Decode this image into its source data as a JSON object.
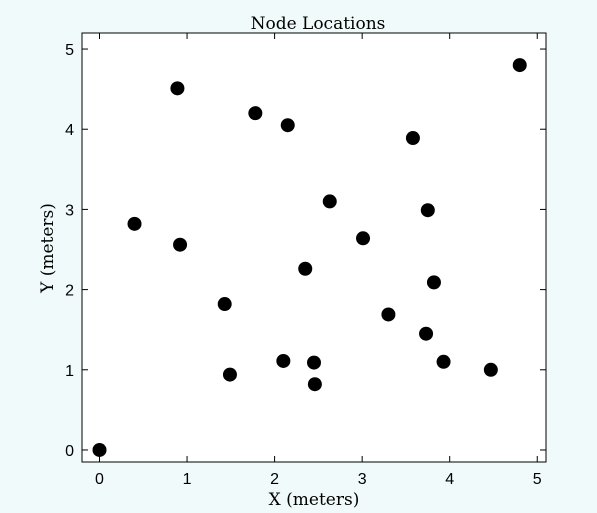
{
  "chart_data": {
    "type": "scatter",
    "title": "Node Locations",
    "xlabel": "X (meters)",
    "ylabel": "Y (meters)",
    "xlim": [
      -0.2,
      5.1
    ],
    "ylim": [
      -0.15,
      5.2
    ],
    "xticks": [
      0,
      1,
      2,
      3,
      4,
      5
    ],
    "yticks": [
      0,
      1,
      2,
      3,
      4,
      5
    ],
    "grid": false,
    "marker_color": "#000000",
    "series": [
      {
        "points": [
          {
            "x": 0.0,
            "y": 0.0
          },
          {
            "x": 0.4,
            "y": 2.82
          },
          {
            "x": 0.89,
            "y": 4.51
          },
          {
            "x": 0.92,
            "y": 2.56
          },
          {
            "x": 1.43,
            "y": 1.82
          },
          {
            "x": 1.49,
            "y": 0.94
          },
          {
            "x": 1.78,
            "y": 4.2
          },
          {
            "x": 2.1,
            "y": 1.11
          },
          {
            "x": 2.15,
            "y": 4.05
          },
          {
            "x": 2.35,
            "y": 2.26
          },
          {
            "x": 2.45,
            "y": 1.09
          },
          {
            "x": 2.46,
            "y": 0.82
          },
          {
            "x": 2.63,
            "y": 3.1
          },
          {
            "x": 3.01,
            "y": 2.64
          },
          {
            "x": 3.3,
            "y": 1.69
          },
          {
            "x": 3.58,
            "y": 3.89
          },
          {
            "x": 3.73,
            "y": 1.45
          },
          {
            "x": 3.75,
            "y": 2.99
          },
          {
            "x": 3.82,
            "y": 2.09
          },
          {
            "x": 3.93,
            "y": 1.1
          },
          {
            "x": 4.47,
            "y": 1.0
          },
          {
            "x": 4.8,
            "y": 4.8
          }
        ]
      }
    ]
  }
}
